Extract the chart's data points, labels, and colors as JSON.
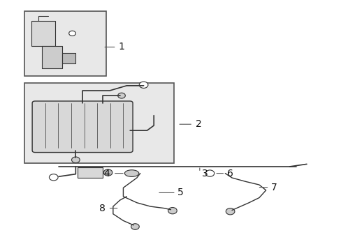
{
  "background_color": "#ffffff",
  "line_color": "#333333",
  "box_color": "#e8e8e8",
  "box_border": "#555555",
  "font_size": 9
}
